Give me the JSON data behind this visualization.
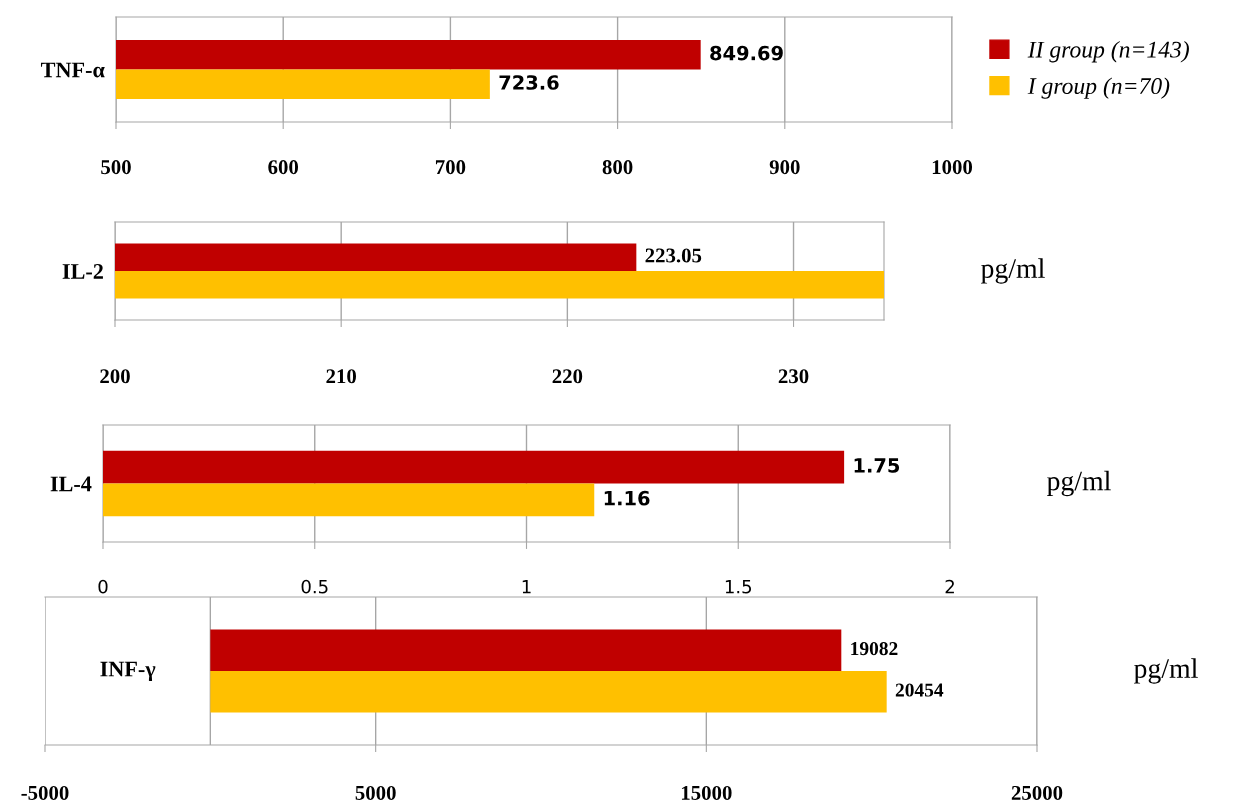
{
  "chart_data": [
    {
      "type": "bar",
      "orientation": "horizontal",
      "categories": [
        "TNF-α"
      ],
      "series": [
        {
          "name": "II group (n=143)",
          "color": "#c00000",
          "values": [
            849.69
          ]
        },
        {
          "name": "I group (n=70)",
          "color": "#ffc000",
          "values": [
            723.6
          ]
        }
      ],
      "xlim": [
        500,
        1000
      ],
      "xticks": [
        500,
        600,
        700,
        800,
        900,
        1000
      ],
      "grid": "x",
      "data_labels": true,
      "legend": "right"
    },
    {
      "type": "bar",
      "orientation": "horizontal",
      "categories": [
        "IL-2"
      ],
      "series": [
        {
          "color": "#c00000",
          "values": [
            223.05
          ],
          "value_labels": [
            "223.05"
          ]
        },
        {
          "color": "#ffc000",
          "values": [
            234.0
          ],
          "value_labels": [
            null
          ]
        }
      ],
      "xlim": [
        200,
        234
      ],
      "xticks": [
        200,
        210,
        220,
        230
      ],
      "grid": "x",
      "annotations": [
        "pg/ml"
      ]
    },
    {
      "type": "bar",
      "orientation": "horizontal",
      "categories": [
        "IL-4"
      ],
      "series": [
        {
          "color": "#c00000",
          "values": [
            1.75
          ]
        },
        {
          "color": "#ffc000",
          "values": [
            1.16
          ]
        }
      ],
      "xlim": [
        0,
        2
      ],
      "xticks": [
        0,
        0.5,
        1,
        1.5,
        2
      ],
      "grid": "x",
      "data_labels": true,
      "annotations": [
        "pg/ml"
      ]
    },
    {
      "type": "bar",
      "orientation": "horizontal",
      "categories": [
        "INF-γ"
      ],
      "series": [
        {
          "color": "#c00000",
          "values": [
            19082
          ]
        },
        {
          "color": "#ffc000",
          "values": [
            20454
          ]
        }
      ],
      "xlim": [
        -5000,
        25000
      ],
      "xticks": [
        -5000,
        5000,
        15000,
        25000
      ],
      "grid": "x",
      "data_labels": true,
      "annotations": [
        "pg/ml"
      ]
    }
  ]
}
